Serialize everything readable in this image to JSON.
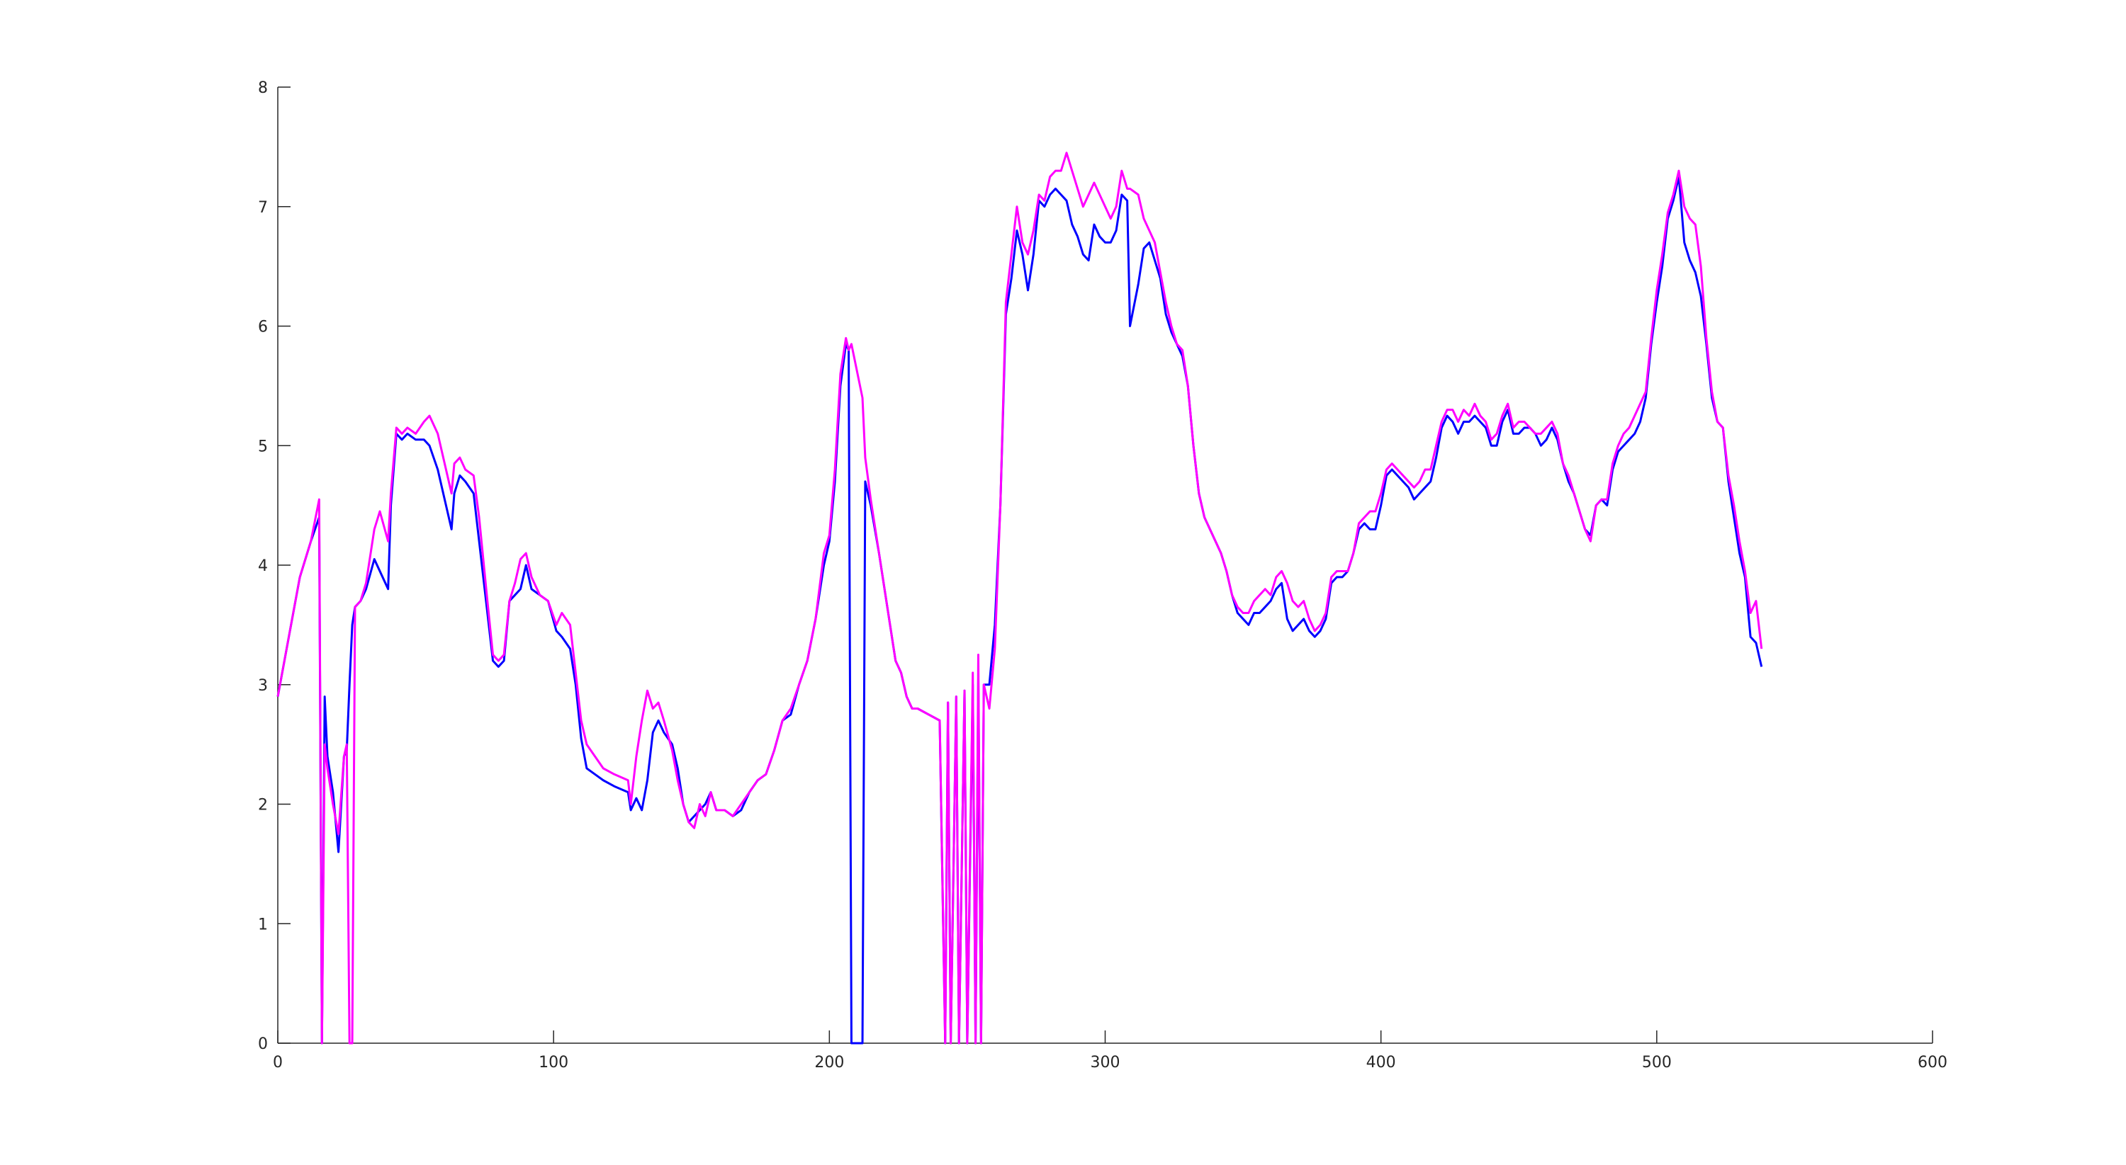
{
  "chart_data": {
    "type": "line",
    "x": [
      0,
      4,
      8,
      12,
      15,
      16,
      17,
      18,
      20,
      22,
      24,
      25,
      26,
      27,
      28,
      30,
      32,
      35,
      37,
      40,
      41,
      43,
      45,
      47,
      50,
      53,
      55,
      58,
      61,
      63,
      64,
      66,
      68,
      71,
      73,
      76,
      78,
      80,
      82,
      84,
      86,
      88,
      90,
      92,
      95,
      98,
      101,
      103,
      106,
      108,
      110,
      112,
      115,
      118,
      122,
      127,
      128,
      130,
      132,
      134,
      136,
      138,
      140,
      143,
      145,
      147,
      149,
      151,
      153,
      155,
      157,
      159,
      162,
      165,
      168,
      171,
      174,
      177,
      180,
      183,
      186,
      189,
      192,
      195,
      198,
      200,
      202,
      204,
      206,
      207,
      208,
      212,
      213,
      215,
      218,
      220,
      222,
      224,
      226,
      228,
      230,
      232,
      236,
      240,
      242,
      243,
      244,
      246,
      247,
      249,
      250,
      252,
      253,
      254,
      255,
      256,
      258,
      260,
      262,
      264,
      266,
      268,
      270,
      272,
      274,
      276,
      278,
      280,
      282,
      284,
      286,
      288,
      290,
      292,
      294,
      296,
      298,
      300,
      302,
      304,
      306,
      308,
      309,
      312,
      314,
      316,
      318,
      320,
      322,
      324,
      326,
      328,
      330,
      332,
      334,
      336,
      338,
      340,
      342,
      344,
      346,
      348,
      350,
      352,
      354,
      356,
      358,
      360,
      362,
      364,
      366,
      368,
      370,
      372,
      374,
      376,
      378,
      380,
      382,
      384,
      386,
      388,
      390,
      392,
      394,
      396,
      398,
      400,
      402,
      404,
      406,
      408,
      410,
      412,
      414,
      416,
      418,
      420,
      422,
      424,
      426,
      428,
      430,
      432,
      434,
      436,
      438,
      440,
      442,
      444,
      446,
      448,
      450,
      452,
      454,
      456,
      458,
      460,
      462,
      464,
      466,
      468,
      470,
      472,
      474,
      476,
      478,
      480,
      482,
      484,
      486,
      488,
      490,
      492,
      494,
      496,
      498,
      500,
      502,
      504,
      506,
      508,
      510,
      512,
      514,
      516,
      518,
      520,
      522,
      524,
      526,
      528,
      530,
      532,
      534,
      536,
      538
    ],
    "series": [
      {
        "color": "#0000ff",
        "values": [
          2.9,
          3.4,
          3.9,
          4.2,
          4.4,
          0,
          2.9,
          2.4,
          2.1,
          1.6,
          2.4,
          2.45,
          3.0,
          3.5,
          3.65,
          3.7,
          3.8,
          4.05,
          3.95,
          3.8,
          4.5,
          5.1,
          5.05,
          5.1,
          5.05,
          5.05,
          5.0,
          4.8,
          4.5,
          4.3,
          4.6,
          4.75,
          4.7,
          4.6,
          4.2,
          3.6,
          3.2,
          3.15,
          3.2,
          3.7,
          3.75,
          3.8,
          4.0,
          3.8,
          3.75,
          3.7,
          3.45,
          3.4,
          3.3,
          3.0,
          2.55,
          2.3,
          2.25,
          2.2,
          2.15,
          2.1,
          1.95,
          2.05,
          1.95,
          2.2,
          2.6,
          2.7,
          2.6,
          2.5,
          2.3,
          2.0,
          1.85,
          1.9,
          1.95,
          2.0,
          2.1,
          1.95,
          1.95,
          1.9,
          1.95,
          2.1,
          2.2,
          2.25,
          2.45,
          2.7,
          2.75,
          3.0,
          3.2,
          3.55,
          4.0,
          4.2,
          4.7,
          5.5,
          5.85,
          5.8,
          0,
          0,
          4.7,
          4.5,
          4.1,
          3.8,
          3.5,
          3.2,
          3.1,
          2.9,
          2.8,
          2.8,
          2.75,
          2.7,
          0,
          2.85,
          0,
          2.9,
          0,
          2.95,
          0,
          3.0,
          0,
          3.05,
          0,
          3.0,
          3.0,
          3.5,
          4.5,
          6.1,
          6.4,
          6.8,
          6.6,
          6.3,
          6.6,
          7.05,
          7.0,
          7.1,
          7.15,
          7.1,
          7.05,
          6.85,
          6.75,
          6.6,
          6.55,
          6.85,
          6.75,
          6.7,
          6.7,
          6.8,
          7.1,
          7.05,
          6.0,
          6.35,
          6.65,
          6.7,
          6.55,
          6.4,
          6.1,
          5.95,
          5.85,
          5.75,
          5.5,
          5.0,
          4.6,
          4.4,
          4.3,
          4.2,
          4.1,
          3.95,
          3.75,
          3.6,
          3.55,
          3.5,
          3.6,
          3.6,
          3.65,
          3.7,
          3.8,
          3.85,
          3.55,
          3.45,
          3.5,
          3.55,
          3.45,
          3.4,
          3.45,
          3.55,
          3.85,
          3.9,
          3.9,
          3.95,
          4.1,
          4.3,
          4.35,
          4.3,
          4.3,
          4.5,
          4.75,
          4.8,
          4.75,
          4.7,
          4.65,
          4.55,
          4.6,
          4.65,
          4.7,
          4.9,
          5.15,
          5.25,
          5.2,
          5.1,
          5.2,
          5.2,
          5.25,
          5.2,
          5.15,
          5.0,
          5.0,
          5.2,
          5.3,
          5.1,
          5.1,
          5.15,
          5.15,
          5.1,
          5.0,
          5.05,
          5.15,
          5.05,
          4.85,
          4.7,
          4.6,
          4.45,
          4.3,
          4.25,
          4.5,
          4.55,
          4.5,
          4.8,
          4.95,
          5.0,
          5.05,
          5.1,
          5.2,
          5.4,
          5.85,
          6.2,
          6.5,
          6.9,
          7.05,
          7.25,
          6.7,
          6.55,
          6.45,
          6.25,
          5.85,
          5.4,
          5.2,
          5.15,
          4.7,
          4.4,
          4.1,
          3.9,
          3.4,
          3.35,
          3.15
        ]
      },
      {
        "color": "#ff00ff",
        "values": [
          2.9,
          3.4,
          3.9,
          4.2,
          4.55,
          0,
          2.5,
          2.3,
          2.0,
          1.75,
          2.4,
          2.5,
          0,
          0,
          3.65,
          3.7,
          3.85,
          4.3,
          4.45,
          4.2,
          4.6,
          5.15,
          5.1,
          5.15,
          5.1,
          5.2,
          5.25,
          5.1,
          4.8,
          4.6,
          4.85,
          4.9,
          4.8,
          4.75,
          4.4,
          3.7,
          3.25,
          3.2,
          3.25,
          3.7,
          3.85,
          4.05,
          4.1,
          3.9,
          3.75,
          3.7,
          3.5,
          3.6,
          3.5,
          3.1,
          2.7,
          2.5,
          2.4,
          2.3,
          2.25,
          2.2,
          2.0,
          2.4,
          2.7,
          2.95,
          2.8,
          2.85,
          2.7,
          2.45,
          2.2,
          2.0,
          1.85,
          1.8,
          2.0,
          1.9,
          2.1,
          1.95,
          1.95,
          1.9,
          2.0,
          2.1,
          2.2,
          2.25,
          2.45,
          2.7,
          2.8,
          3.0,
          3.2,
          3.55,
          4.1,
          4.25,
          4.8,
          5.6,
          5.9,
          5.8,
          5.85,
          5.4,
          4.9,
          4.55,
          4.1,
          3.8,
          3.5,
          3.2,
          3.1,
          2.9,
          2.8,
          2.8,
          2.75,
          2.7,
          0,
          2.85,
          0,
          2.9,
          0,
          2.95,
          0,
          3.1,
          0,
          3.25,
          0,
          3.0,
          2.8,
          3.3,
          4.5,
          6.2,
          6.6,
          7.0,
          6.7,
          6.6,
          6.8,
          7.1,
          7.05,
          7.25,
          7.3,
          7.3,
          7.45,
          7.3,
          7.15,
          7.0,
          7.1,
          7.2,
          7.1,
          7.0,
          6.9,
          7.0,
          7.3,
          7.15,
          7.15,
          7.1,
          6.9,
          6.8,
          6.7,
          6.45,
          6.2,
          6.0,
          5.85,
          5.8,
          5.5,
          5.0,
          4.6,
          4.4,
          4.3,
          4.2,
          4.1,
          3.95,
          3.75,
          3.65,
          3.6,
          3.6,
          3.7,
          3.75,
          3.8,
          3.75,
          3.9,
          3.95,
          3.85,
          3.7,
          3.65,
          3.7,
          3.55,
          3.45,
          3.5,
          3.6,
          3.9,
          3.95,
          3.95,
          3.95,
          4.1,
          4.35,
          4.4,
          4.45,
          4.45,
          4.6,
          4.8,
          4.85,
          4.8,
          4.75,
          4.7,
          4.65,
          4.7,
          4.8,
          4.8,
          5.0,
          5.2,
          5.3,
          5.3,
          5.2,
          5.3,
          5.25,
          5.35,
          5.25,
          5.2,
          5.05,
          5.1,
          5.25,
          5.35,
          5.15,
          5.2,
          5.2,
          5.15,
          5.1,
          5.1,
          5.15,
          5.2,
          5.1,
          4.85,
          4.75,
          4.6,
          4.45,
          4.3,
          4.2,
          4.5,
          4.55,
          4.55,
          4.85,
          5.0,
          5.1,
          5.15,
          5.25,
          5.35,
          5.45,
          5.9,
          6.3,
          6.6,
          6.95,
          7.1,
          7.3,
          7.0,
          6.9,
          6.85,
          6.5,
          5.9,
          5.45,
          5.2,
          5.15,
          4.75,
          4.5,
          4.2,
          3.95,
          3.6,
          3.7,
          3.3
        ]
      }
    ],
    "xlim": [
      0,
      600
    ],
    "xticks": [
      0,
      100,
      200,
      300,
      400,
      500,
      600
    ],
    "ylim": [
      0,
      8
    ],
    "yticks": [
      0,
      1,
      2,
      3,
      4,
      5,
      6,
      7,
      8
    ],
    "grid": false
  }
}
